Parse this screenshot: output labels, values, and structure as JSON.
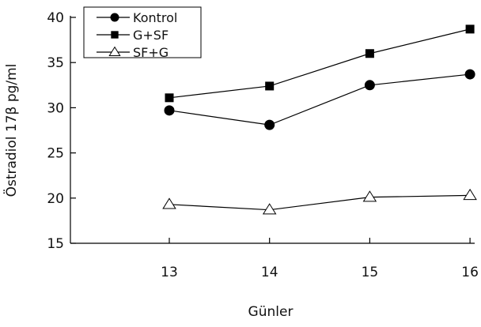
{
  "chart_data": {
    "type": "line",
    "xlabel": "Günler",
    "ylabel": "Östradiol 17β pg/ml",
    "x": [
      13,
      14,
      15,
      16
    ],
    "ylim": [
      15,
      40
    ],
    "yticks": [
      15,
      20,
      25,
      30,
      35,
      40
    ],
    "grid": false,
    "legend_position": "top-left",
    "series": [
      {
        "name": "Kontrol",
        "marker": "circle-filled",
        "values": [
          29.7,
          28.1,
          32.5,
          33.7
        ]
      },
      {
        "name": "G+SF",
        "marker": "square-filled",
        "values": [
          31.1,
          32.4,
          36.0,
          38.7
        ]
      },
      {
        "name": "SF+G",
        "marker": "triangle-open",
        "values": [
          19.3,
          18.7,
          20.1,
          20.3
        ]
      }
    ]
  }
}
